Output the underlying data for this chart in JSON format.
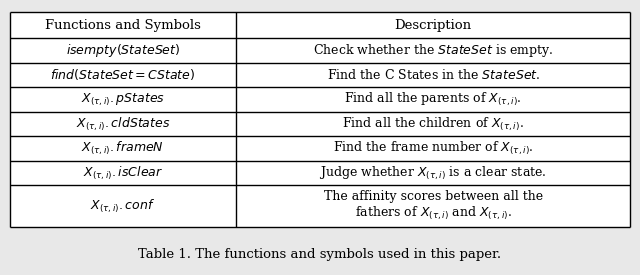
{
  "fig_width": 6.4,
  "fig_height": 2.75,
  "dpi": 100,
  "bg_color": "#e8e8e8",
  "table_bg": "#ffffff",
  "caption": "Table 1. The functions and symbols used in this paper.",
  "header": [
    "Functions and Symbols",
    "Description"
  ],
  "col_split": 0.365,
  "rows": [
    {
      "left": "$isempty(StateSet)$",
      "right": "Check whether the $StateSet$ is empty."
    },
    {
      "left": "$find(StateSet = CState)$",
      "right": "Find the C States in the $StateSet$."
    },
    {
      "left": "$X_{(\\tau,i)}.pStates$",
      "right": "Find all the parents of $X_{(\\tau,i)}$."
    },
    {
      "left": "$X_{(\\tau,i)}.cldStates$",
      "right": "Find all the children of $X_{(\\tau,i)}$."
    },
    {
      "left": "$X_{(\\tau,i)}.frameN$",
      "right": "Find the frame number of $X_{(\\tau,i)}$."
    },
    {
      "left": "$X_{(\\tau,i)}.isClear$",
      "right": "Judge whether $X_{(\\tau,i)}$ is a clear state."
    },
    {
      "left": "$X_{(\\tau,i)}.conf$",
      "right": "The affinity scores between all the\nfathers of $X_{(\\tau,i)}$ and $X_{(\\tau,i)}$."
    }
  ],
  "header_fs": 9.5,
  "cell_fs": 9.0,
  "caption_fs": 9.5
}
